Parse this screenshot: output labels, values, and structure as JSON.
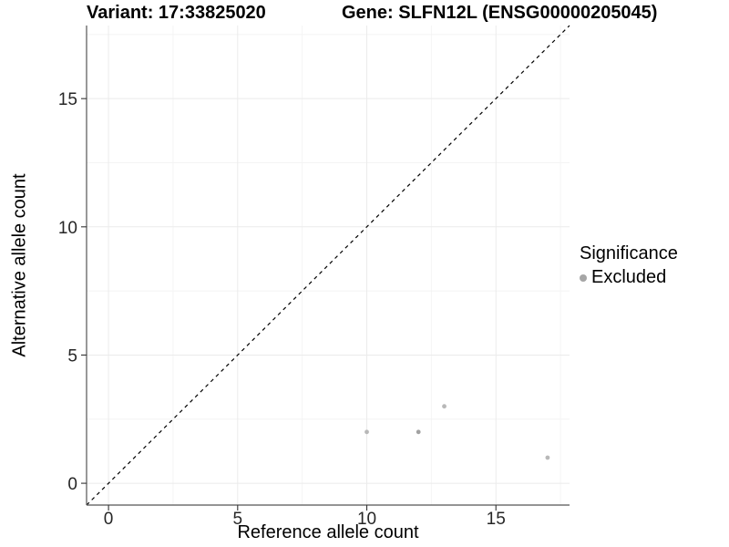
{
  "chart_data": {
    "type": "scatter",
    "title_left": "Variant: 17:33825020",
    "title_right": "Gene: SLFN12L (ENSG00000205045)",
    "xlabel": "Reference allele count",
    "ylabel": "Alternative allele count",
    "xlim": [
      -0.85,
      17.85
    ],
    "ylim": [
      -0.85,
      17.85
    ],
    "x_major_ticks": [
      0,
      5,
      10,
      15
    ],
    "x_tick_labels": [
      "0",
      "5",
      "10",
      "15"
    ],
    "y_major_ticks": [
      0,
      5,
      10,
      15
    ],
    "y_tick_labels": [
      "0",
      "5",
      "10",
      "15"
    ],
    "minor_ticks": [
      2.5,
      7.5,
      12.5,
      17.5
    ],
    "grid": true,
    "legend_position": "right",
    "reference_line": {
      "type": "identity",
      "style": "dashed",
      "color": "#000000"
    },
    "series": [
      {
        "name": "Excluded",
        "color": "#b8b8b8",
        "points": [
          {
            "x": 10,
            "y": 2
          },
          {
            "x": 12,
            "y": 2,
            "color": "#a2a2a2"
          },
          {
            "x": 13,
            "y": 3
          },
          {
            "x": 17,
            "y": 1
          }
        ]
      }
    ],
    "legend": {
      "title": "Significance",
      "entries": [
        {
          "label": "Excluded",
          "color": "#a6a6a6"
        }
      ]
    },
    "colors": {
      "major_grid": "#ebebeb",
      "minor_grid": "#f4f4f4",
      "axis_line": "#555555",
      "tick_mark": "#333333",
      "tick_label": "#262626"
    }
  }
}
